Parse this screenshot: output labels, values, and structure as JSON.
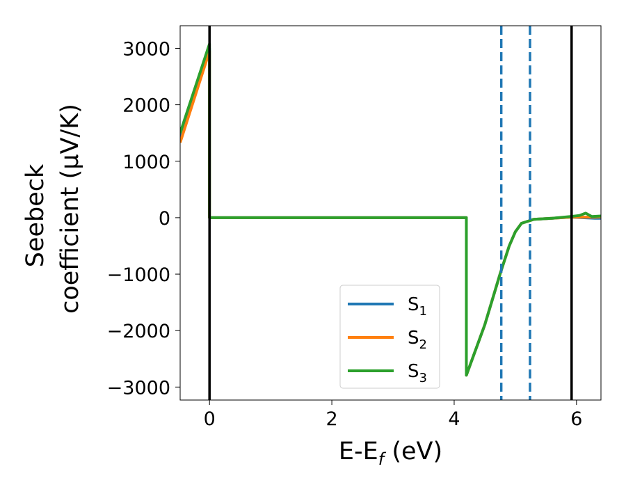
{
  "chart_data": {
    "type": "line",
    "xlabel": {
      "main": "E-E",
      "sub": "f",
      "unit": " (eV)"
    },
    "ylabel": {
      "line1": "Seebeck",
      "line2": "coefficient  (μV/K)"
    },
    "xlim": [
      -0.48,
      6.4
    ],
    "ylim": [
      -3230,
      3400
    ],
    "xticks": [
      0,
      2,
      4,
      6
    ],
    "yticks": [
      -3000,
      -2000,
      -1000,
      0,
      1000,
      2000,
      3000
    ],
    "tick_labels": {
      "x": [
        "0",
        "2",
        "4",
        "6"
      ],
      "y": [
        "−3000",
        "−2000",
        "−1000",
        "0",
        "1000",
        "2000",
        "3000"
      ]
    },
    "grid": false,
    "legend_position": "lower-center",
    "series": [
      {
        "name": "S",
        "sub": "1",
        "color": "#1f77b4",
        "x": [
          -0.48,
          0.0,
          0.0,
          4.2,
          4.2,
          4.5,
          4.75,
          4.9,
          5.0,
          5.1,
          5.3,
          5.6,
          5.9,
          6.1,
          6.3,
          6.4
        ],
        "y": [
          1430,
          3000,
          0,
          0,
          -2790,
          -1900,
          -1000,
          -500,
          -250,
          -100,
          -30,
          -10,
          10,
          0,
          -10,
          -10
        ]
      },
      {
        "name": "S",
        "sub": "2",
        "color": "#ff7f0e",
        "x": [
          -0.48,
          0.0,
          0.0,
          4.2,
          4.2,
          4.5,
          4.75,
          4.9,
          5.0,
          5.1,
          5.3,
          5.6,
          5.9,
          6.1,
          6.3,
          6.4
        ],
        "y": [
          1330,
          2950,
          0,
          0,
          -2790,
          -1900,
          -1000,
          -500,
          -250,
          -100,
          -30,
          -10,
          10,
          10,
          10,
          15
        ]
      },
      {
        "name": "S",
        "sub": "3",
        "color": "#2ca02c",
        "x": [
          -0.48,
          0.0,
          0.0,
          4.2,
          4.2,
          4.5,
          4.75,
          4.9,
          5.0,
          5.1,
          5.3,
          5.6,
          5.9,
          6.05,
          6.15,
          6.25,
          6.4
        ],
        "y": [
          1500,
          3080,
          0,
          0,
          -2790,
          -1900,
          -1000,
          -500,
          -250,
          -100,
          -30,
          -10,
          20,
          40,
          80,
          20,
          30
        ]
      }
    ],
    "vlines": [
      {
        "x": 0.0,
        "style": "solid",
        "color": "#000000"
      },
      {
        "x": 5.92,
        "style": "solid",
        "color": "#000000"
      },
      {
        "x": 4.77,
        "style": "dashed",
        "color": "#1f77b4"
      },
      {
        "x": 5.24,
        "style": "dashed",
        "color": "#1f77b4"
      }
    ]
  }
}
